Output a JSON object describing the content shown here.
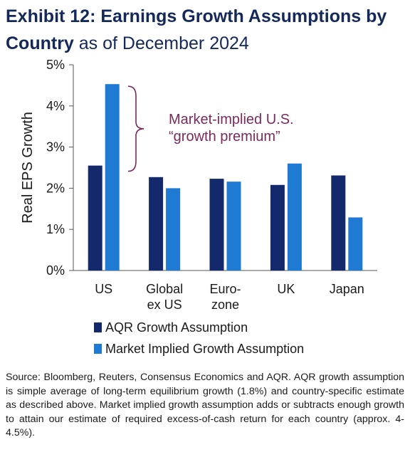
{
  "title": {
    "bold": "Exhibit 12: Earnings Growth Assumptions by Country",
    "normal": "as of December 2024"
  },
  "colors": {
    "aqr": "#13296b",
    "market": "#1f7ad4",
    "annotation": "#7a2a5e",
    "axis": "#555555"
  },
  "chart_data": {
    "type": "bar",
    "categories": [
      "US",
      "Global ex US",
      "Euro-zone",
      "UK",
      "Japan"
    ],
    "category_lines": [
      [
        "US"
      ],
      [
        "Global",
        "ex US"
      ],
      [
        "Euro-",
        "zone"
      ],
      [
        "UK"
      ],
      [
        "Japan"
      ]
    ],
    "series": [
      {
        "name": "AQR Growth Assumption",
        "values": [
          2.55,
          2.27,
          2.23,
          2.08,
          2.31
        ]
      },
      {
        "name": "Market Implied Growth Assumption",
        "values": [
          4.53,
          2.0,
          2.16,
          2.6,
          1.29
        ]
      }
    ],
    "ylabel": "Real EPS Growth",
    "ylim": [
      0,
      5
    ],
    "yticks": [
      "0%",
      "1%",
      "2%",
      "3%",
      "4%",
      "5%"
    ],
    "grid": false,
    "legend_position": "bottom-left",
    "annotation": {
      "lines": [
        "Market-implied U.S.",
        "“growth premium”"
      ]
    }
  },
  "source": "Source: Bloomberg, Reuters, Consensus Economics and AQR. AQR growth assumption is simple average of long-term equilibrium growth (1.8%) and country-specific estimate as described above. Market implied growth assumption adds or subtracts enough growth to attain our estimate of required excess-of-cash return for each country (approx. 4-4.5%)."
}
